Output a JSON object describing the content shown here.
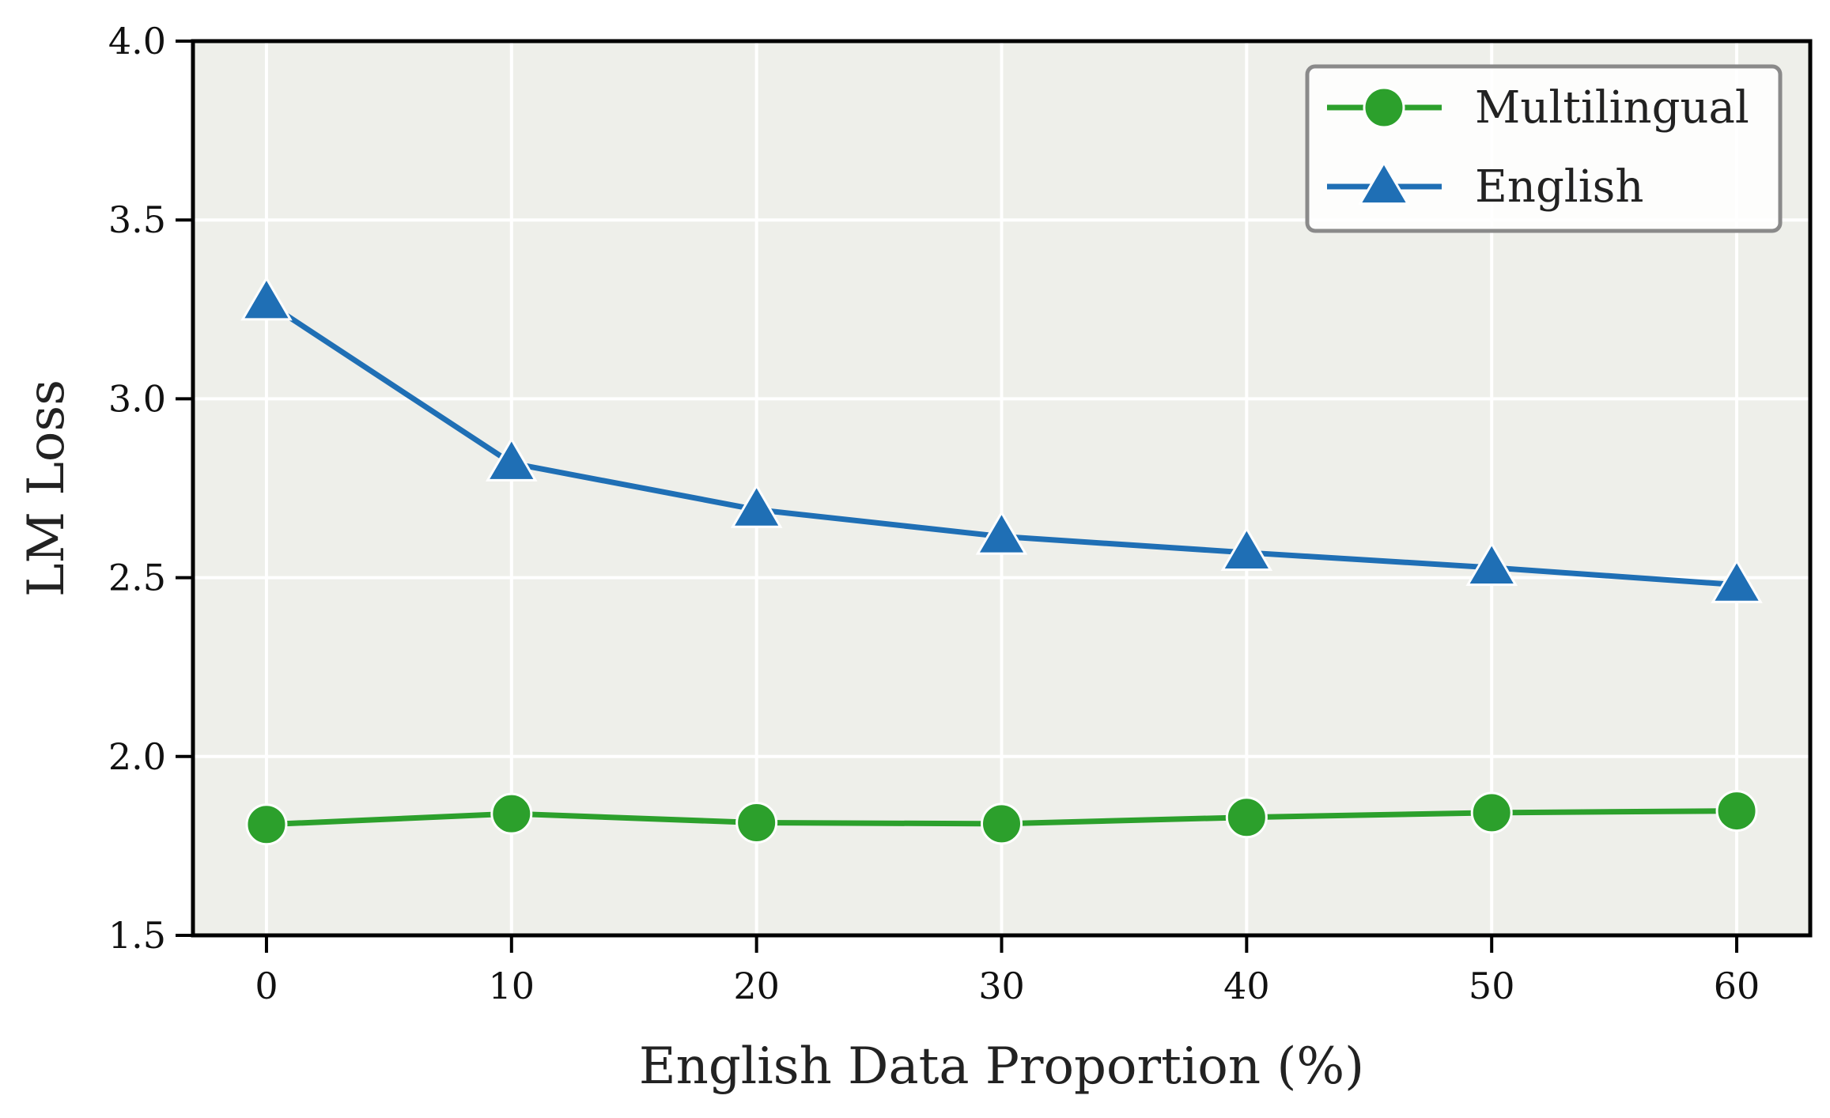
{
  "chart_data": {
    "type": "line",
    "title": "",
    "xlabel": "English Data Proportion (%)",
    "ylabel": "LM Loss",
    "xlim": [
      -3,
      63
    ],
    "ylim": [
      1.5,
      4.0
    ],
    "x_ticks": [
      "0",
      "10",
      "20",
      "30",
      "40",
      "50",
      "60"
    ],
    "y_ticks": [
      "1.5",
      "2.0",
      "2.5",
      "3.0",
      "3.5",
      "4.0"
    ],
    "grid": true,
    "legend_position": "top-right",
    "x": [
      0,
      10,
      20,
      30,
      40,
      50,
      60
    ],
    "series": [
      {
        "name": "Multilingual",
        "color": "#2ca02c",
        "marker": "circle",
        "values": [
          1.81,
          1.84,
          1.815,
          1.812,
          1.83,
          1.843,
          1.848
        ]
      },
      {
        "name": "English",
        "color": "#1f6fb5",
        "marker": "triangle",
        "values": [
          3.27,
          2.82,
          2.69,
          2.615,
          2.57,
          2.528,
          2.48
        ]
      }
    ],
    "colors": {
      "plot_background": "#eeefea",
      "grid": "#ffffff",
      "axes": "#000000",
      "legend_border": "#8a8a8a"
    }
  }
}
